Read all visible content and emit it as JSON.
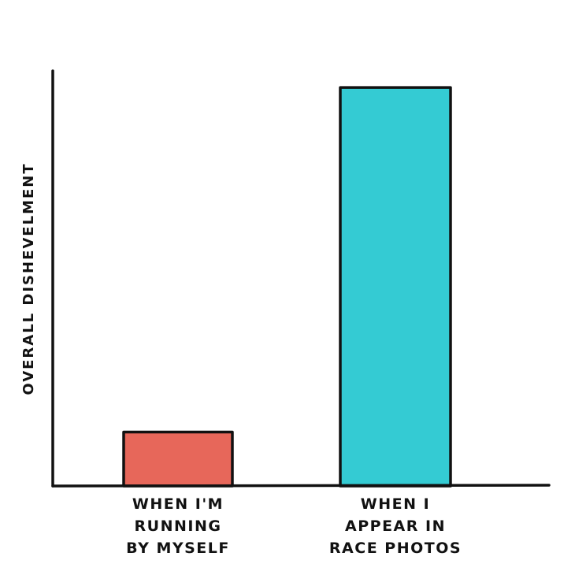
{
  "chart_data": {
    "type": "bar",
    "title": "",
    "xlabel": "",
    "ylabel": "OVERALL DISHEVELMENT",
    "ylim": [
      0,
      100
    ],
    "grid": false,
    "legend": "none",
    "categories": [
      [
        "WHEN I'M",
        "RUNNING",
        "BY MYSELF"
      ],
      [
        "WHEN I",
        "APPEAR IN",
        "RACE PHOTOS"
      ]
    ],
    "values": [
      13,
      96
    ],
    "colors": [
      "#e7675a",
      "#34cbd3"
    ],
    "axis_color": "#111111"
  }
}
